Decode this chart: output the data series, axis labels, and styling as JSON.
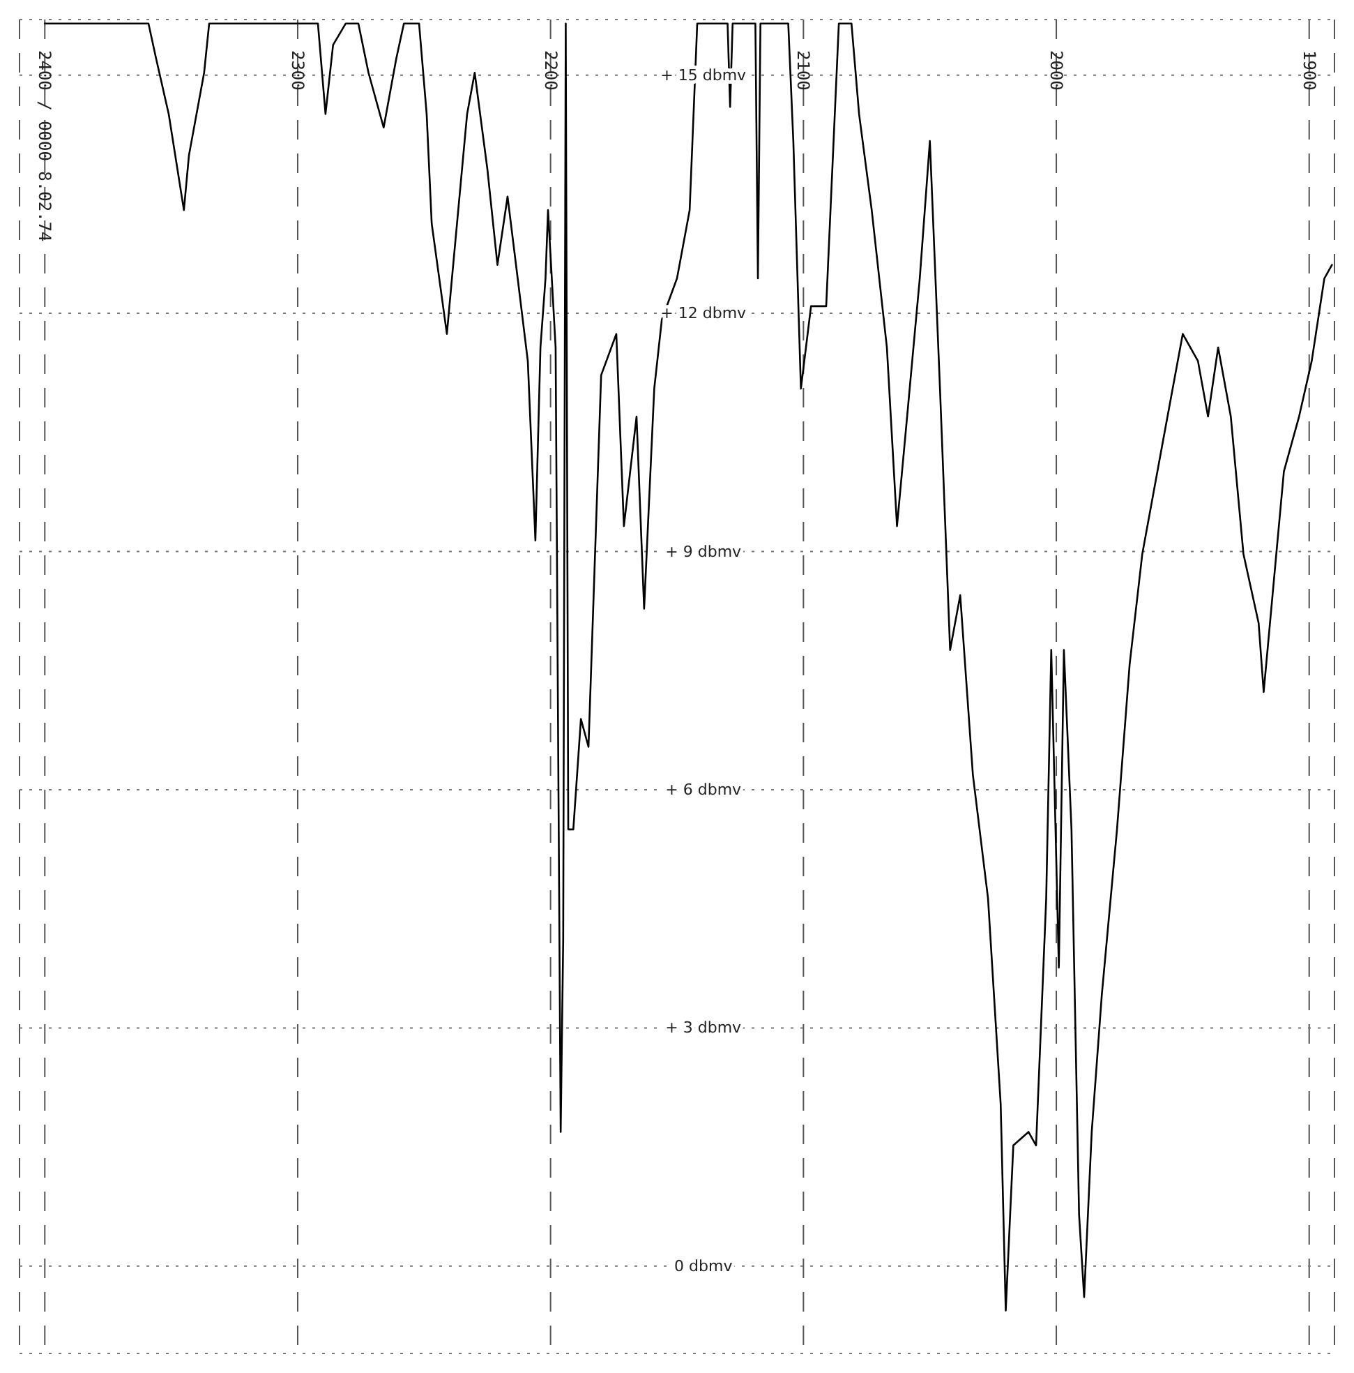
{
  "chart_data": {
    "type": "line",
    "xlim": [
      2410,
      1890
    ],
    "xticks": [
      {
        "value": 2400,
        "label": "2400 / 0000   8.02.74"
      },
      2300,
      2200,
      2100,
      2000,
      1900
    ],
    "ylim": [
      -1.1,
      15.7
    ],
    "yticks": [
      {
        "value": 0,
        "label": "0 dbmv"
      },
      {
        "value": 3,
        "label": "+ 3 dbmv"
      },
      {
        "value": 6,
        "label": "+ 6 dbmv"
      },
      {
        "value": 9,
        "label": "+ 9 dbmv"
      },
      {
        "value": 12,
        "label": "+ 12 dbmv"
      },
      {
        "value": 15,
        "label": "+ 15 dbmv"
      }
    ],
    "grid": true,
    "marker": "none",
    "line_style": "solid",
    "series": [
      {
        "color": "#000000",
        "x": [
          2400,
          2359,
          2356,
          2351,
          2345,
          2343,
          2337,
          2335,
          2292,
          2289,
          2286,
          2281,
          2276,
          2272,
          2266,
          2261,
          2258,
          2252,
          2249,
          2247,
          2241,
          2239,
          2233,
          2230,
          2225,
          2221,
          2217,
          2213,
          2209,
          2206,
          2204,
          2202,
          2201,
          2198,
          2196,
          2195,
          2194,
          2193,
          2191,
          2188,
          2185,
          2180,
          2174,
          2171,
          2166,
          2163,
          2159,
          2156,
          2150,
          2145,
          2142,
          2130,
          2129,
          2128,
          2119,
          2118,
          2117,
          2106,
          2104,
          2101,
          2097,
          2091,
          2086,
          2081,
          2078,
          2073,
          2067,
          2063,
          2059,
          2054,
          2050,
          2046,
          2042,
          2038,
          2033,
          2027,
          2022,
          2020,
          2017,
          2011,
          2008,
          2004,
          2002,
          1999,
          1997,
          1994,
          1991,
          1989,
          1986,
          1982,
          1976,
          1971,
          1966,
          1958,
          1950,
          1944,
          1940,
          1936,
          1931,
          1926,
          1920,
          1918,
          1913,
          1910,
          1904,
          1899,
          1894,
          1891
        ],
        "values": [
          15.65,
          15.65,
          15.21,
          14.51,
          13.3,
          13.99,
          15.03,
          15.65,
          15.65,
          14.51,
          15.38,
          15.65,
          15.65,
          15.03,
          14.34,
          15.21,
          15.65,
          15.65,
          14.51,
          13.13,
          11.74,
          12.44,
          14.51,
          15.03,
          13.82,
          12.61,
          13.47,
          12.44,
          11.4,
          9.14,
          11.57,
          12.44,
          13.3,
          11.57,
          1.69,
          4.11,
          15.65,
          5.5,
          5.5,
          6.89,
          6.54,
          11.22,
          11.74,
          9.32,
          10.7,
          8.28,
          11.05,
          11.92,
          12.44,
          13.3,
          15.65,
          15.65,
          14.6,
          15.65,
          15.65,
          12.44,
          15.65,
          15.65,
          14.17,
          11.05,
          12.09,
          12.09,
          15.65,
          15.65,
          14.51,
          13.3,
          11.57,
          9.32,
          10.7,
          12.44,
          14.17,
          11.05,
          7.76,
          8.45,
          6.19,
          4.63,
          2.04,
          -0.56,
          1.52,
          1.69,
          1.52,
          4.63,
          7.76,
          3.76,
          7.76,
          5.5,
          0.65,
          -0.39,
          1.69,
          3.42,
          5.5,
          7.58,
          8.97,
          10.36,
          11.74,
          11.4,
          10.7,
          11.57,
          10.7,
          8.97,
          8.1,
          7.23,
          8.97,
          10.01,
          10.7,
          11.4,
          12.44,
          12.61
        ]
      }
    ]
  }
}
